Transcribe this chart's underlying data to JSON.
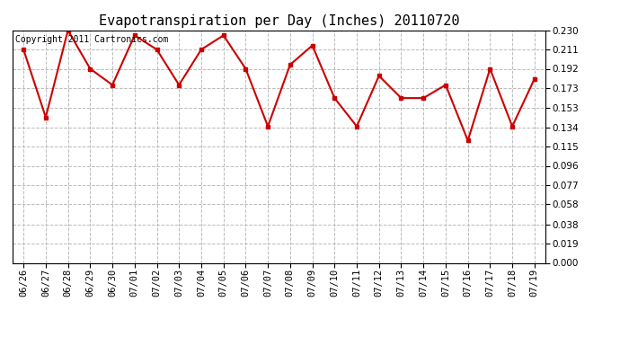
{
  "title": "Evapotranspiration per Day (Inches) 20110720",
  "copyright_text": "Copyright 2011 Cartronics.com",
  "dates": [
    "06/26",
    "06/27",
    "06/28",
    "06/29",
    "06/30",
    "07/01",
    "07/02",
    "07/03",
    "07/04",
    "07/05",
    "07/06",
    "07/07",
    "07/08",
    "07/09",
    "07/10",
    "07/11",
    "07/12",
    "07/13",
    "07/14",
    "07/15",
    "07/16",
    "07/17",
    "07/18",
    "07/19"
  ],
  "values": [
    0.211,
    0.144,
    0.23,
    0.192,
    0.176,
    0.225,
    0.211,
    0.176,
    0.211,
    0.225,
    0.192,
    0.135,
    0.196,
    0.215,
    0.163,
    0.135,
    0.185,
    0.163,
    0.163,
    0.176,
    0.121,
    0.192,
    0.135,
    0.182
  ],
  "line_color": "#cc0000",
  "marker_color": "#cc0000",
  "bg_color": "#ffffff",
  "plot_bg_color": "#ffffff",
  "grid_color": "#bbbbbb",
  "title_fontsize": 11,
  "copyright_fontsize": 7,
  "tick_fontsize": 7.5,
  "ylim": [
    0.0,
    0.23
  ],
  "yticks": [
    0.0,
    0.019,
    0.038,
    0.058,
    0.077,
    0.096,
    0.115,
    0.134,
    0.153,
    0.173,
    0.192,
    0.211,
    0.23
  ]
}
